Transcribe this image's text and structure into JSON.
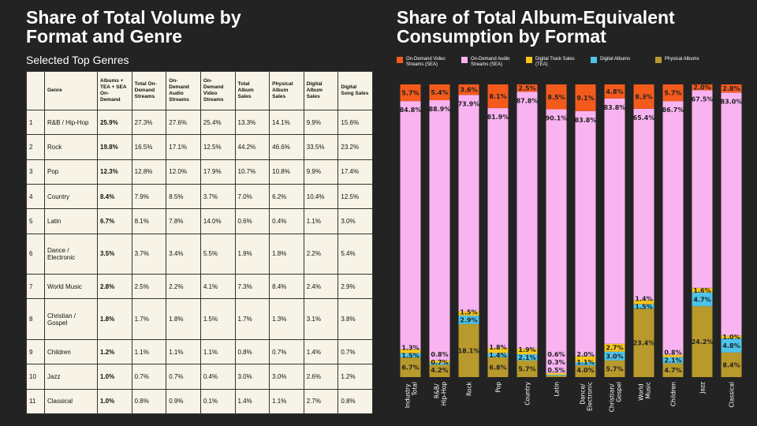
{
  "left": {
    "title": "Share of Total Volume by Format and Genre",
    "subtitle": "Selected Top Genres",
    "table": {
      "header": [
        "Genre",
        "Albums + TEA + SEA On-Demand",
        "Total On-Demand Streams",
        "On-Demand Audio Streams",
        "On-Demand Video Streams",
        "Total Album Sales",
        "Physical Album Sales",
        "Digital Album Sales",
        "Digital Song Sales"
      ],
      "rows": [
        [
          "1",
          "R&B / Hip-Hop",
          "25.9%",
          "27.3%",
          "27.6%",
          "25.4%",
          "13.3%",
          "14.1%",
          "9.9%",
          "15.6%"
        ],
        [
          "2",
          "Rock",
          "19.8%",
          "16.5%",
          "17.1%",
          "12.5%",
          "44.2%",
          "46.6%",
          "33.5%",
          "23.2%"
        ],
        [
          "3",
          "Pop",
          "12.3%",
          "12.8%",
          "12.0%",
          "17.9%",
          "10.7%",
          "10.8%",
          "9.9%",
          "17.4%"
        ],
        [
          "4",
          "Country",
          "8.4%",
          "7.9%",
          "8.5%",
          "3.7%",
          "7.0%",
          "6.2%",
          "10.4%",
          "12.5%"
        ],
        [
          "5",
          "Latin",
          "6.7%",
          "8.1%",
          "7.8%",
          "14.0%",
          "0.6%",
          "0.4%",
          "1.1%",
          "3.0%"
        ],
        [
          "6",
          "Dance / Electronic",
          "3.5%",
          "3.7%",
          "3.4%",
          "5.5%",
          "1.9%",
          "1.8%",
          "2.2%",
          "5.4%"
        ],
        [
          "7",
          "World Music",
          "2.8%",
          "2.5%",
          "2.2%",
          "4.1%",
          "7.3%",
          "8.4%",
          "2.4%",
          "2.9%"
        ],
        [
          "8",
          "Christian / Gospel",
          "1.8%",
          "1.7%",
          "1.8%",
          "1.5%",
          "1.7%",
          "1.3%",
          "3.1%",
          "3.8%"
        ],
        [
          "9",
          "Children",
          "1.2%",
          "1.1%",
          "1.1%",
          "1.1%",
          "0.8%",
          "0.7%",
          "1.4%",
          "0.7%"
        ],
        [
          "10",
          "Jazz",
          "1.0%",
          "0.7%",
          "0.7%",
          "0.4%",
          "3.0%",
          "3.0%",
          "2.6%",
          "1.2%"
        ],
        [
          "11",
          "Classical",
          "1.0%",
          "0.8%",
          "0.9%",
          "0.1%",
          "1.4%",
          "1.1%",
          "2.7%",
          "0.8%"
        ]
      ]
    }
  },
  "chart_data": {
    "type": "stacked_bar",
    "title": "Share of Total Album-Equivalent Consumption by Format",
    "categories": [
      "Industry Total",
      "R&B/ Hip-Hop",
      "Rock",
      "Pop",
      "Country",
      "Latin",
      "Dance/ Electronic",
      "Christian/ Gospel",
      "World Music",
      "Children",
      "Jazz",
      "Classical"
    ],
    "ylim": [
      0,
      100
    ],
    "series": [
      {
        "name": "Physical Albums",
        "color": "#b8992c",
        "values": [
          6.7,
          4.2,
          18.1,
          6.8,
          5.7,
          0.5,
          4.0,
          5.7,
          23.4,
          4.7,
          24.2,
          8.4
        ],
        "value_labels": [
          "6.7%",
          "4.2%",
          "18.1%",
          "6.8%",
          "5.7%",
          "0.5%",
          "4.0%",
          "5.7%",
          "23.4%",
          "4.7%",
          "24.2%",
          "8.4%"
        ]
      },
      {
        "name": "Digital Albums",
        "color": "#4ec4ea",
        "values": [
          1.5,
          0.7,
          2.9,
          1.4,
          2.1,
          0.3,
          1.1,
          3.0,
          1.5,
          2.1,
          4.7,
          4.8
        ],
        "value_labels": [
          "1.5%",
          "0.7%",
          "2.9%",
          "1.4%",
          "2.1%",
          "0.3%",
          "1.1%",
          "3.0%",
          "1.5%",
          "2.1%",
          "4.7%",
          "4.8%"
        ]
      },
      {
        "name": "Digital Track Sales (TEA)",
        "color": "#f7c51c",
        "values": [
          1.3,
          0.8,
          1.5,
          1.8,
          1.9,
          0.6,
          2.0,
          2.7,
          1.4,
          0.8,
          1.6,
          1.0
        ],
        "value_labels": [
          "1.3%",
          "0.8%",
          "1.5%",
          "1.8%",
          "1.9%",
          "0.6%",
          "2.0%",
          "2.7%",
          "1.4%",
          "0.8%",
          "1.6%",
          "1.0%"
        ]
      },
      {
        "name": "On-Demand Audio Streams (SEA)",
        "color": "#f9b3f1",
        "values": [
          84.8,
          88.9,
          73.9,
          81.9,
          87.8,
          90.1,
          83.8,
          83.8,
          65.4,
          86.7,
          67.5,
          83.0
        ],
        "value_labels": [
          "84.8%",
          "88.9%",
          "73.9%",
          "81.9%",
          "87.8%",
          "90.1%",
          "83.8%",
          "83.8%",
          "65.4%",
          "86.7%",
          "67.5%",
          "83.0%"
        ]
      },
      {
        "name": "On-Demand Video Streams (SEA)",
        "color": "#f45a1c",
        "values": [
          5.7,
          5.4,
          3.6,
          8.1,
          2.5,
          8.5,
          9.1,
          4.8,
          8.3,
          5.7,
          2.0,
          2.8
        ],
        "value_labels": [
          "5.7%",
          "5.4%",
          "3.6%",
          "8.1%",
          "2.5%",
          "8.5%",
          "9.1%",
          "4.8%",
          "8.3%",
          "5.7%",
          "2.0%",
          "2.8%"
        ]
      }
    ]
  }
}
